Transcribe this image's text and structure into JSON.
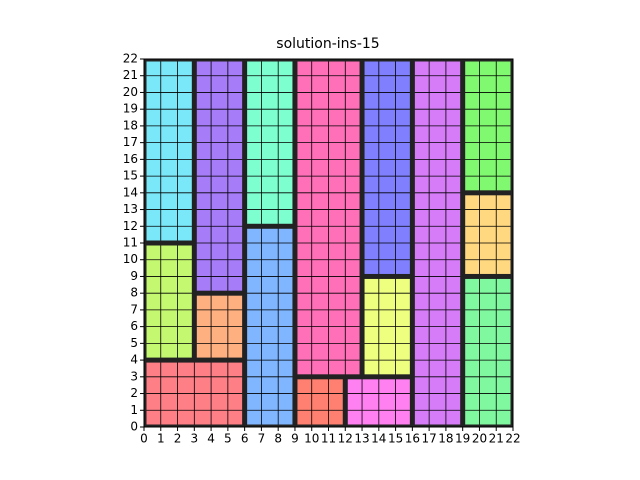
{
  "chart_data": {
    "type": "rects",
    "title": "solution-ins-15",
    "xlim": [
      0,
      22
    ],
    "ylim": [
      0,
      22
    ],
    "xticks": [
      0,
      1,
      2,
      3,
      4,
      5,
      6,
      7,
      8,
      9,
      10,
      11,
      12,
      13,
      14,
      15,
      16,
      17,
      18,
      19,
      20,
      21,
      22
    ],
    "yticks": [
      0,
      1,
      2,
      3,
      4,
      5,
      6,
      7,
      8,
      9,
      10,
      11,
      12,
      13,
      14,
      15,
      16,
      17,
      18,
      19,
      20,
      21,
      22
    ],
    "grid": true,
    "rects": [
      {
        "x": 0,
        "y": 11,
        "w": 3,
        "h": 11,
        "color": "#7ae8f8"
      },
      {
        "x": 0,
        "y": 4,
        "w": 3,
        "h": 7,
        "color": "#c4f870"
      },
      {
        "x": 0,
        "y": 0,
        "w": 6,
        "h": 4,
        "color": "#ff7f87"
      },
      {
        "x": 3,
        "y": 8,
        "w": 3,
        "h": 14,
        "color": "#a67cf8"
      },
      {
        "x": 3,
        "y": 4,
        "w": 3,
        "h": 4,
        "color": "#ffb080"
      },
      {
        "x": 6,
        "y": 12,
        "w": 3,
        "h": 10,
        "color": "#7effd0"
      },
      {
        "x": 6,
        "y": 0,
        "w": 3,
        "h": 12,
        "color": "#7fb6ff"
      },
      {
        "x": 9,
        "y": 3,
        "w": 4,
        "h": 19,
        "color": "#ff70b8"
      },
      {
        "x": 9,
        "y": 0,
        "w": 3,
        "h": 3,
        "color": "#ff8070"
      },
      {
        "x": 12,
        "y": 0,
        "w": 4,
        "h": 3,
        "color": "#ff80f0"
      },
      {
        "x": 13,
        "y": 9,
        "w": 3,
        "h": 13,
        "color": "#8080ff"
      },
      {
        "x": 13,
        "y": 3,
        "w": 3,
        "h": 6,
        "color": "#eeff80"
      },
      {
        "x": 16,
        "y": 0,
        "w": 3,
        "h": 22,
        "color": "#d67cf8"
      },
      {
        "x": 19,
        "y": 14,
        "w": 3,
        "h": 8,
        "color": "#80f870"
      },
      {
        "x": 19,
        "y": 9,
        "w": 3,
        "h": 5,
        "color": "#ffd880"
      },
      {
        "x": 19,
        "y": 0,
        "w": 3,
        "h": 9,
        "color": "#80f8a0"
      }
    ]
  }
}
